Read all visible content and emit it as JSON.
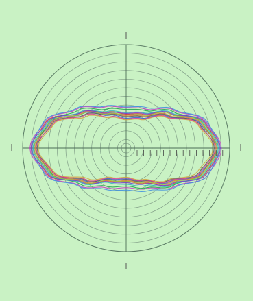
{
  "chart_data": {
    "type": "polar-line",
    "title": "",
    "direction_labels": [
      "",
      "",
      "",
      ""
    ],
    "radial_ticks": [
      "",
      "",
      "",
      "",
      "",
      "",
      "",
      "",
      "",
      "",
      "",
      "",
      "",
      ""
    ],
    "rmax": 1.0,
    "grid_rings": 12,
    "series": [
      {
        "color": "#d23b3b",
        "values": [
          0.9,
          0.82,
          0.6,
          0.45,
          0.42,
          0.48,
          0.62,
          0.84,
          0.91,
          0.83,
          0.59,
          0.44,
          0.41,
          0.47,
          0.63,
          0.83
        ]
      },
      {
        "color": "#3b5bd2",
        "values": [
          0.88,
          0.78,
          0.56,
          0.4,
          0.37,
          0.44,
          0.6,
          0.8,
          0.89,
          0.8,
          0.57,
          0.41,
          0.38,
          0.43,
          0.59,
          0.79
        ]
      },
      {
        "color": "#1fa34a",
        "values": [
          0.86,
          0.8,
          0.64,
          0.5,
          0.48,
          0.52,
          0.66,
          0.81,
          0.87,
          0.79,
          0.63,
          0.51,
          0.47,
          0.53,
          0.65,
          0.8
        ]
      },
      {
        "color": "#c23bc2",
        "values": [
          0.92,
          0.84,
          0.66,
          0.52,
          0.5,
          0.55,
          0.68,
          0.85,
          0.93,
          0.84,
          0.65,
          0.53,
          0.49,
          0.54,
          0.67,
          0.86
        ]
      },
      {
        "color": "#d2a23b",
        "values": [
          0.84,
          0.75,
          0.54,
          0.38,
          0.35,
          0.41,
          0.55,
          0.76,
          0.85,
          0.76,
          0.53,
          0.39,
          0.36,
          0.42,
          0.56,
          0.75
        ]
      },
      {
        "color": "#2bb3b8",
        "values": [
          0.89,
          0.81,
          0.62,
          0.47,
          0.44,
          0.49,
          0.63,
          0.82,
          0.9,
          0.81,
          0.61,
          0.46,
          0.45,
          0.5,
          0.64,
          0.82
        ]
      },
      {
        "color": "#e0723b",
        "values": [
          0.87,
          0.79,
          0.58,
          0.43,
          0.4,
          0.46,
          0.61,
          0.79,
          0.88,
          0.78,
          0.58,
          0.44,
          0.4,
          0.45,
          0.6,
          0.8
        ]
      },
      {
        "color": "#7a3bd2",
        "values": [
          0.91,
          0.83,
          0.61,
          0.46,
          0.43,
          0.47,
          0.62,
          0.83,
          0.92,
          0.82,
          0.6,
          0.45,
          0.43,
          0.48,
          0.62,
          0.84
        ]
      },
      {
        "color": "#5c5c5c",
        "values": [
          0.85,
          0.77,
          0.57,
          0.42,
          0.39,
          0.45,
          0.58,
          0.78,
          0.86,
          0.77,
          0.56,
          0.42,
          0.39,
          0.44,
          0.57,
          0.77
        ]
      },
      {
        "color": "#9bc23b",
        "values": [
          0.88,
          0.8,
          0.6,
          0.44,
          0.41,
          0.46,
          0.6,
          0.81,
          0.89,
          0.8,
          0.59,
          0.43,
          0.41,
          0.46,
          0.61,
          0.81
        ]
      },
      {
        "color": "#e03b8c",
        "values": [
          0.86,
          0.76,
          0.55,
          0.39,
          0.36,
          0.42,
          0.57,
          0.77,
          0.87,
          0.77,
          0.55,
          0.4,
          0.37,
          0.43,
          0.58,
          0.78
        ]
      },
      {
        "color": "#3b8ce0",
        "values": [
          0.9,
          0.85,
          0.67,
          0.54,
          0.51,
          0.56,
          0.69,
          0.86,
          0.91,
          0.85,
          0.66,
          0.55,
          0.52,
          0.57,
          0.68,
          0.86
        ]
      }
    ]
  }
}
